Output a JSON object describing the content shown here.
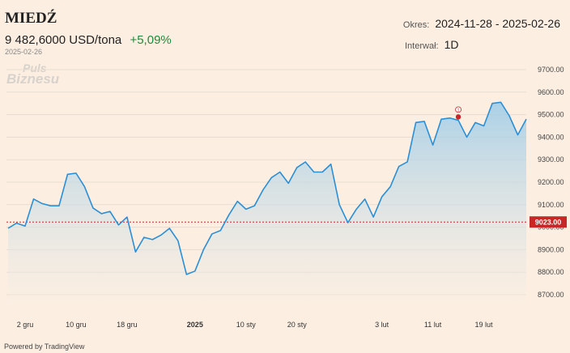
{
  "header": {
    "title": "MIEDŹ",
    "price": "9 482,6000 USD/tona",
    "change": "+5,09%",
    "date": "2025-02-26",
    "period_label": "Okres:",
    "period_value": "2024-11-28 - 2025-02-26",
    "interval_label": "Interwał:",
    "interval_value": "1D"
  },
  "watermark": {
    "line1": "Puls",
    "line2": "Biznesu"
  },
  "footer": {
    "text": "Powered by TradingView"
  },
  "colors": {
    "line": "#2b8fd6",
    "area_top": "#9ccbe8",
    "area_bottom": "#fcefe2",
    "reference": "#c62828",
    "marker": "#c62828",
    "grid": "#e8dccf"
  },
  "chart_data": {
    "type": "area",
    "ylim": [
      8700,
      9700
    ],
    "y_ticks": [
      "9700.00",
      "9600.00",
      "9500.00",
      "9400.00",
      "9300.00",
      "9200.00",
      "9100.00",
      "9000.00",
      "8900.00",
      "8800.00",
      "8700.00"
    ],
    "x_ticks": [
      {
        "label": "2 gru",
        "index": 2
      },
      {
        "label": "10 gru",
        "index": 8
      },
      {
        "label": "18 gru",
        "index": 14
      },
      {
        "label": "2025",
        "index": 22
      },
      {
        "label": "10 sty",
        "index": 28
      },
      {
        "label": "20 sty",
        "index": 34
      },
      {
        "label": "3 lut",
        "index": 44
      },
      {
        "label": "11 lut",
        "index": 50
      },
      {
        "label": "19 lut",
        "index": 56
      }
    ],
    "reference_line": {
      "value": 9023,
      "label": "9023.00"
    },
    "marker": {
      "index": 53,
      "value": 9490,
      "label": "1"
    },
    "values": [
      8995,
      9018,
      9005,
      9125,
      9105,
      9095,
      9095,
      9235,
      9240,
      9180,
      9085,
      9060,
      9070,
      9010,
      9045,
      8890,
      8955,
      8945,
      8965,
      8995,
      8940,
      8790,
      8805,
      8900,
      8970,
      8985,
      9055,
      9115,
      9080,
      9095,
      9165,
      9220,
      9245,
      9195,
      9265,
      9290,
      9245,
      9245,
      9280,
      9100,
      9020,
      9080,
      9125,
      9045,
      9135,
      9180,
      9270,
      9290,
      9465,
      9470,
      9365,
      9480,
      9485,
      9475,
      9400,
      9465,
      9450,
      9550,
      9555,
      9495,
      9410,
      9480
    ]
  }
}
